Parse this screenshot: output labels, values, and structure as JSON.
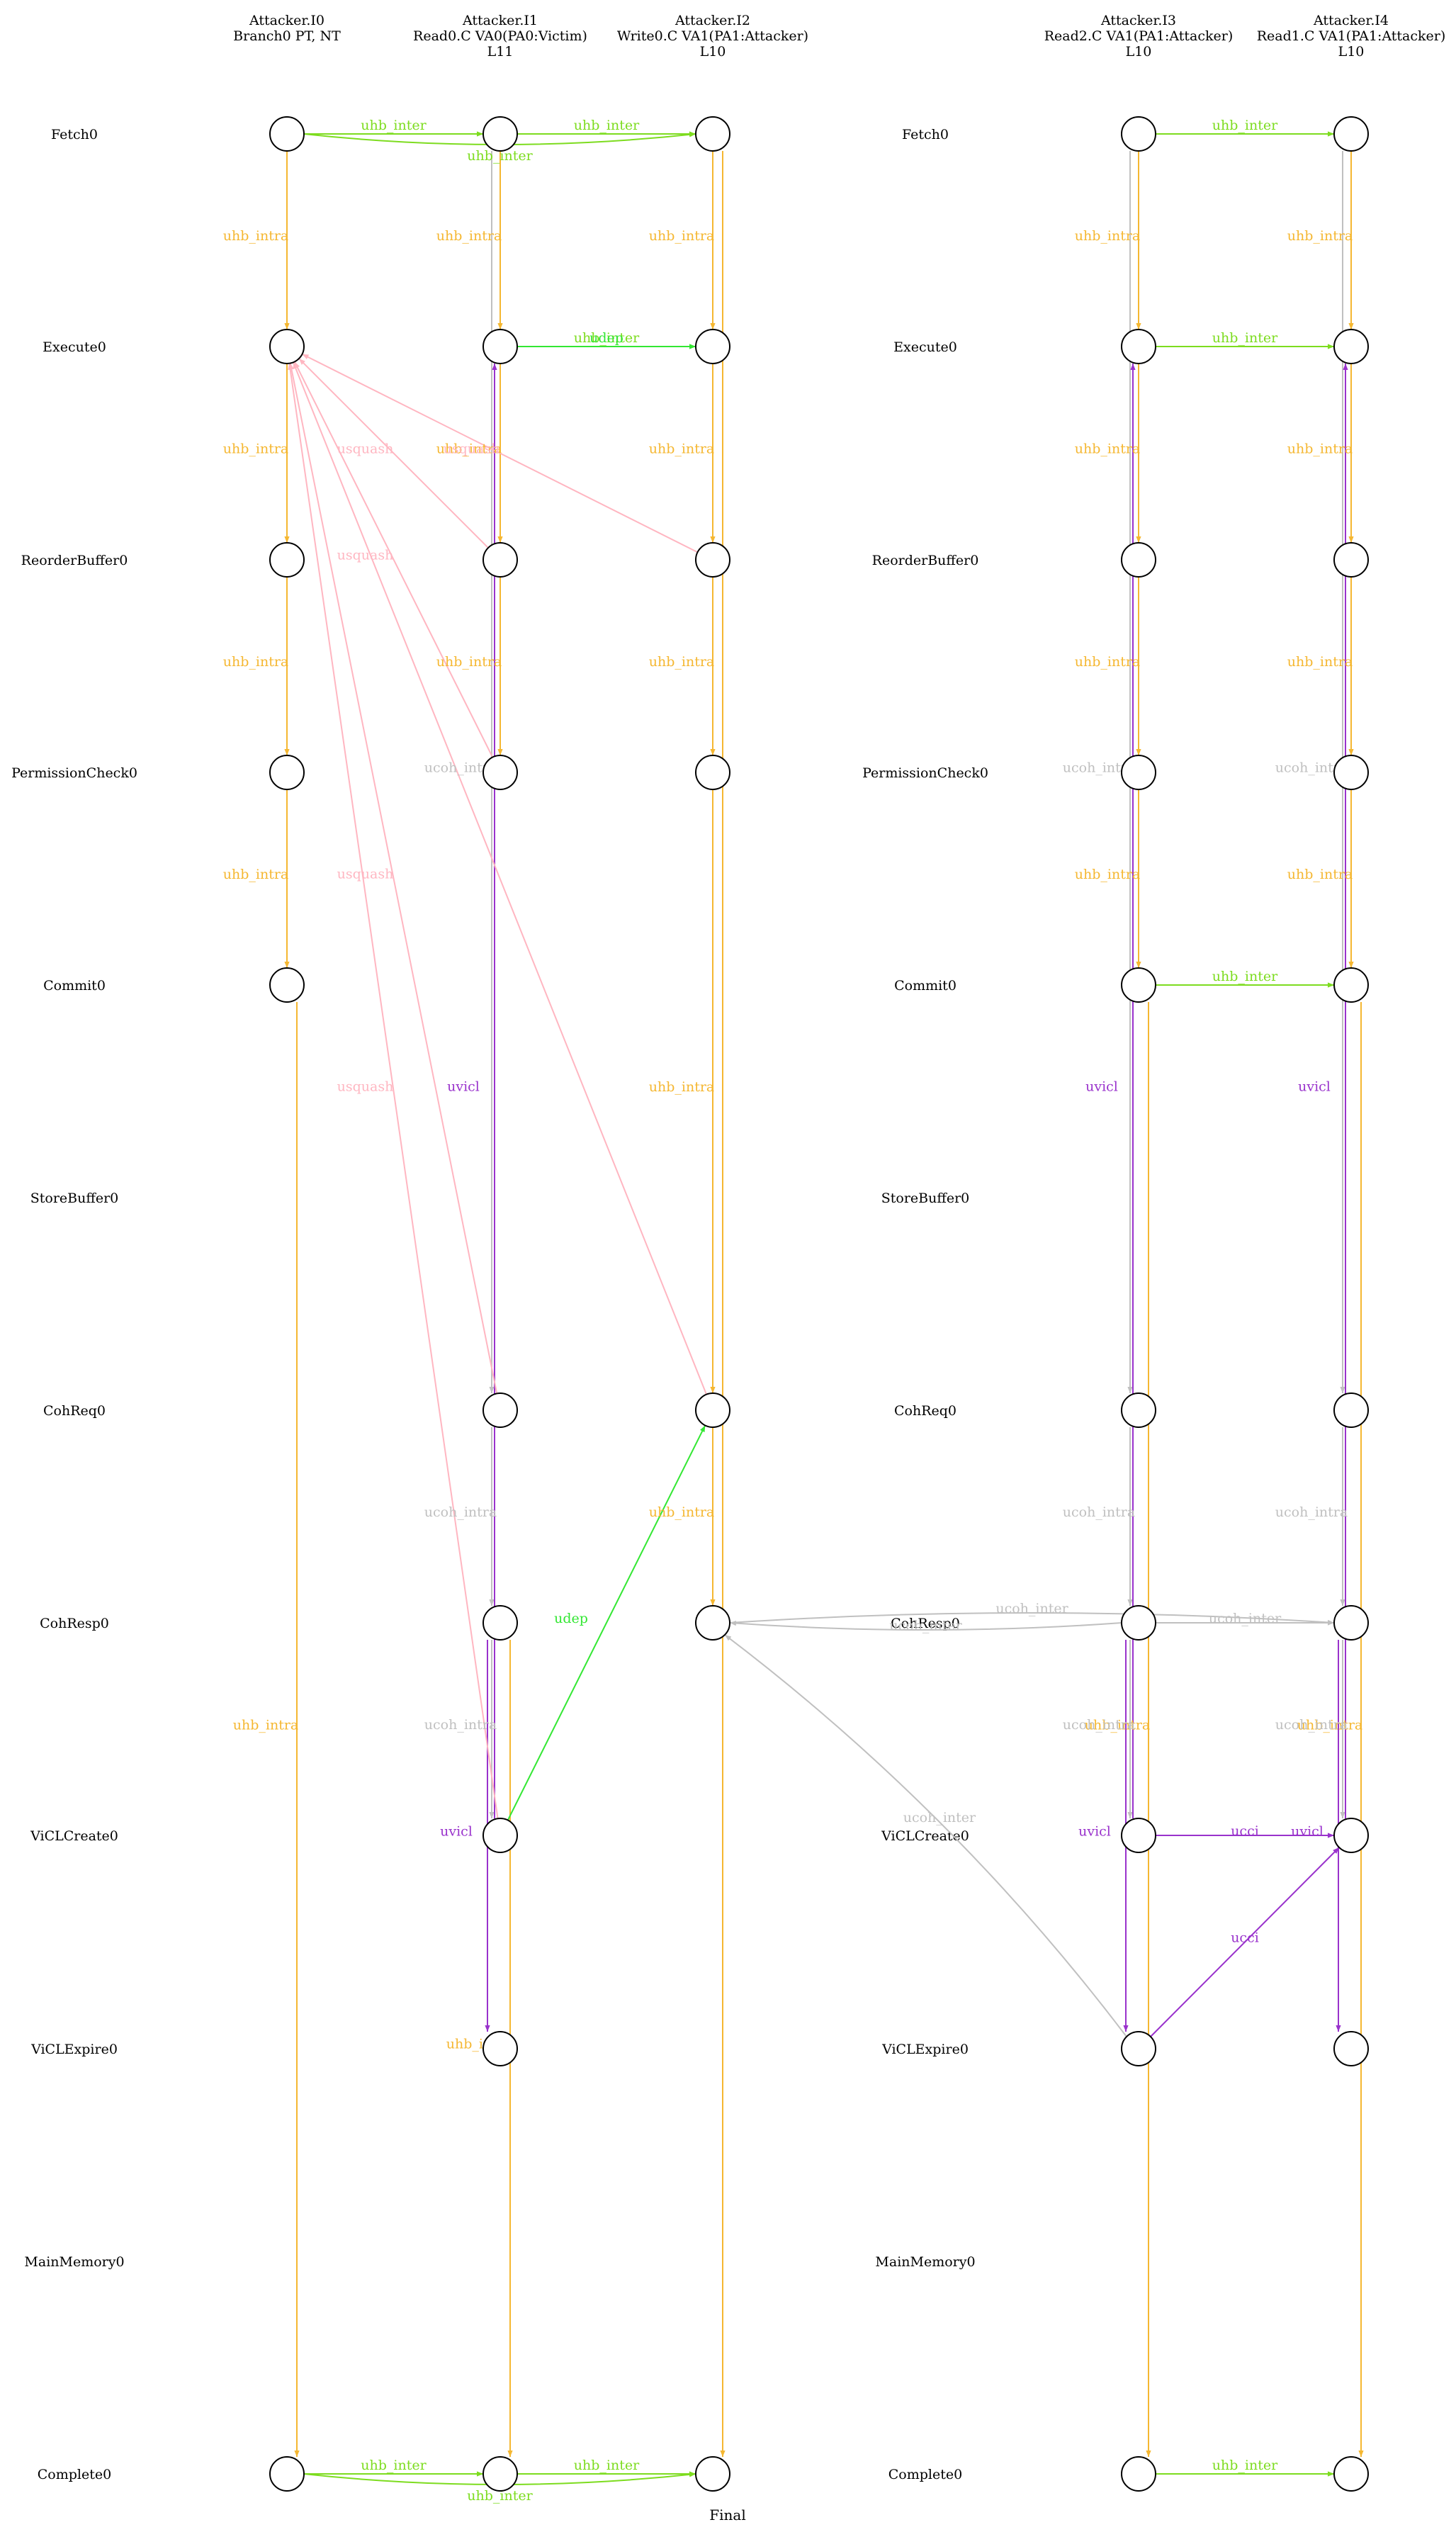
{
  "colors": {
    "uhb_intra": "#f5b731",
    "uhb_inter": "#7ddc1f",
    "udep": "#33e733",
    "ucoh": "#c0c0c0",
    "uvicl": "#9932cc",
    "usquash": "#ffb6c1",
    "node_stroke": "#000000",
    "text": "#000000"
  },
  "columns": [
    {
      "id": "c0",
      "lines": [
        "Attacker.I0",
        "Branch0 PT, NT"
      ]
    },
    {
      "id": "c1",
      "lines": [
        "Attacker.I1",
        "Read0.C VA0(PA0:Victim)",
        "L11"
      ]
    },
    {
      "id": "c2",
      "lines": [
        "Attacker.I2",
        "Write0.C VA1(PA1:Attacker)",
        "L10"
      ]
    },
    {
      "id": "c3",
      "lines": [
        "Attacker.I3",
        "Read2.C VA1(PA1:Attacker)",
        "L10"
      ]
    },
    {
      "id": "c4",
      "lines": [
        "Attacker.I4",
        "Read1.C VA1(PA1:Attacker)",
        "L10"
      ]
    }
  ],
  "rows": [
    "Fetch0",
    "Execute0",
    "ReorderBuffer0",
    "PermissionCheck0",
    "Commit0",
    "StoreBuffer0",
    "CohReq0",
    "CohResp0",
    "ViCLCreate0",
    "ViCLExpire0",
    "MainMemory0",
    "Complete0"
  ],
  "nodes": [
    {
      "c": 0,
      "r": 0
    },
    {
      "c": 0,
      "r": 1
    },
    {
      "c": 0,
      "r": 2
    },
    {
      "c": 0,
      "r": 3
    },
    {
      "c": 0,
      "r": 4
    },
    {
      "c": 0,
      "r": 11
    },
    {
      "c": 1,
      "r": 0
    },
    {
      "c": 1,
      "r": 1
    },
    {
      "c": 1,
      "r": 2
    },
    {
      "c": 1,
      "r": 3
    },
    {
      "c": 1,
      "r": 6
    },
    {
      "c": 1,
      "r": 7
    },
    {
      "c": 1,
      "r": 8
    },
    {
      "c": 1,
      "r": 9
    },
    {
      "c": 1,
      "r": 11
    },
    {
      "c": 2,
      "r": 0
    },
    {
      "c": 2,
      "r": 1
    },
    {
      "c": 2,
      "r": 2
    },
    {
      "c": 2,
      "r": 3
    },
    {
      "c": 2,
      "r": 6
    },
    {
      "c": 2,
      "r": 7
    },
    {
      "c": 2,
      "r": 11
    },
    {
      "c": 3,
      "r": 0
    },
    {
      "c": 3,
      "r": 1
    },
    {
      "c": 3,
      "r": 2
    },
    {
      "c": 3,
      "r": 3
    },
    {
      "c": 3,
      "r": 4
    },
    {
      "c": 3,
      "r": 6
    },
    {
      "c": 3,
      "r": 7
    },
    {
      "c": 3,
      "r": 8
    },
    {
      "c": 3,
      "r": 9
    },
    {
      "c": 3,
      "r": 11
    },
    {
      "c": 4,
      "r": 0
    },
    {
      "c": 4,
      "r": 1
    },
    {
      "c": 4,
      "r": 2
    },
    {
      "c": 4,
      "r": 3
    },
    {
      "c": 4,
      "r": 4
    },
    {
      "c": 4,
      "r": 6
    },
    {
      "c": 4,
      "r": 7
    },
    {
      "c": 4,
      "r": 8
    },
    {
      "c": 4,
      "r": 9
    },
    {
      "c": 4,
      "r": 11
    }
  ],
  "edges": [
    {
      "from": [
        0,
        0
      ],
      "to": [
        0,
        1
      ],
      "kind": "uhb_intra",
      "label": "uhb_intra"
    },
    {
      "from": [
        0,
        1
      ],
      "to": [
        0,
        2
      ],
      "kind": "uhb_intra",
      "label": "uhb_intra"
    },
    {
      "from": [
        0,
        2
      ],
      "to": [
        0,
        3
      ],
      "kind": "uhb_intra",
      "label": "uhb_intra"
    },
    {
      "from": [
        0,
        3
      ],
      "to": [
        0,
        4
      ],
      "kind": "uhb_intra",
      "label": "uhb_intra"
    },
    {
      "from": [
        0,
        4
      ],
      "to": [
        0,
        11
      ],
      "kind": "uhb_intra",
      "label": "uhb_intra"
    },
    {
      "from": [
        1,
        0
      ],
      "to": [
        1,
        1
      ],
      "kind": "uhb_intra",
      "label": "uhb_intra"
    },
    {
      "from": [
        1,
        1
      ],
      "to": [
        1,
        2
      ],
      "kind": "uhb_intra",
      "label": "uhb_intra"
    },
    {
      "from": [
        1,
        2
      ],
      "to": [
        1,
        3
      ],
      "kind": "uhb_intra",
      "label": "uhb_intra"
    },
    {
      "from": [
        1,
        7
      ],
      "to": [
        1,
        11
      ],
      "kind": "uhb_intra",
      "label": "uhb_intra"
    },
    {
      "from": [
        2,
        0
      ],
      "to": [
        2,
        1
      ],
      "kind": "uhb_intra",
      "label": "uhb_intra"
    },
    {
      "from": [
        2,
        1
      ],
      "to": [
        2,
        2
      ],
      "kind": "uhb_intra",
      "label": "uhb_intra"
    },
    {
      "from": [
        2,
        2
      ],
      "to": [
        2,
        3
      ],
      "kind": "uhb_intra",
      "label": "uhb_intra"
    },
    {
      "from": [
        2,
        3
      ],
      "to": [
        2,
        6
      ],
      "kind": "uhb_intra",
      "label": "uhb_intra"
    },
    {
      "from": [
        2,
        6
      ],
      "to": [
        2,
        7
      ],
      "kind": "uhb_intra",
      "label": "uhb_intra"
    },
    {
      "from": [
        2,
        0
      ],
      "to": [
        2,
        11
      ],
      "kind": "uhb_intra",
      "label": ""
    },
    {
      "from": [
        3,
        0
      ],
      "to": [
        3,
        1
      ],
      "kind": "uhb_intra",
      "label": "uhb_intra"
    },
    {
      "from": [
        3,
        1
      ],
      "to": [
        3,
        2
      ],
      "kind": "uhb_intra",
      "label": "uhb_intra"
    },
    {
      "from": [
        3,
        2
      ],
      "to": [
        3,
        3
      ],
      "kind": "uhb_intra",
      "label": "uhb_intra"
    },
    {
      "from": [
        3,
        3
      ],
      "to": [
        3,
        4
      ],
      "kind": "uhb_intra",
      "label": "uhb_intra"
    },
    {
      "from": [
        3,
        4
      ],
      "to": [
        3,
        11
      ],
      "kind": "uhb_intra",
      "label": "uhb_intra"
    },
    {
      "from": [
        4,
        0
      ],
      "to": [
        4,
        1
      ],
      "kind": "uhb_intra",
      "label": "uhb_intra"
    },
    {
      "from": [
        4,
        1
      ],
      "to": [
        4,
        2
      ],
      "kind": "uhb_intra",
      "label": "uhb_intra"
    },
    {
      "from": [
        4,
        2
      ],
      "to": [
        4,
        3
      ],
      "kind": "uhb_intra",
      "label": "uhb_intra"
    },
    {
      "from": [
        4,
        3
      ],
      "to": [
        4,
        4
      ],
      "kind": "uhb_intra",
      "label": "uhb_intra"
    },
    {
      "from": [
        4,
        4
      ],
      "to": [
        4,
        11
      ],
      "kind": "uhb_intra",
      "label": "uhb_intra"
    },
    {
      "from": [
        0,
        0
      ],
      "to": [
        1,
        0
      ],
      "kind": "uhb_inter",
      "label": "uhb_inter"
    },
    {
      "from": [
        1,
        0
      ],
      "to": [
        2,
        0
      ],
      "kind": "uhb_inter",
      "label": "uhb_inter"
    },
    {
      "from": [
        0,
        0
      ],
      "to": [
        2,
        0
      ],
      "kind": "uhb_inter",
      "label": "uhb_inter",
      "bend": 30
    },
    {
      "from": [
        1,
        1
      ],
      "to": [
        2,
        1
      ],
      "kind": "uhb_inter",
      "label": "uhb_inter"
    },
    {
      "from": [
        1,
        1
      ],
      "to": [
        2,
        1
      ],
      "kind": "udep",
      "label": "udep"
    },
    {
      "from": [
        0,
        11
      ],
      "to": [
        1,
        11
      ],
      "kind": "uhb_inter",
      "label": "uhb_inter"
    },
    {
      "from": [
        1,
        11
      ],
      "to": [
        2,
        11
      ],
      "kind": "uhb_inter",
      "label": "uhb_inter"
    },
    {
      "from": [
        0,
        11
      ],
      "to": [
        2,
        11
      ],
      "kind": "uhb_inter",
      "label": "uhb_inter",
      "bend": 30
    },
    {
      "from": [
        3,
        0
      ],
      "to": [
        4,
        0
      ],
      "kind": "uhb_inter",
      "label": "uhb_inter"
    },
    {
      "from": [
        3,
        1
      ],
      "to": [
        4,
        1
      ],
      "kind": "uhb_inter",
      "label": "uhb_inter"
    },
    {
      "from": [
        3,
        4
      ],
      "to": [
        4,
        4
      ],
      "kind": "uhb_inter",
      "label": "uhb_inter"
    },
    {
      "from": [
        3,
        11
      ],
      "to": [
        4,
        11
      ],
      "kind": "uhb_inter",
      "label": "uhb_inter"
    },
    {
      "from": [
        1,
        8
      ],
      "to": [
        2,
        6
      ],
      "kind": "udep",
      "label": "udep"
    },
    {
      "from": [
        1,
        0
      ],
      "to": [
        1,
        6
      ],
      "kind": "ucoh",
      "label": "ucoh_intra"
    },
    {
      "from": [
        1,
        6
      ],
      "to": [
        1,
        7
      ],
      "kind": "ucoh",
      "label": "ucoh_intra"
    },
    {
      "from": [
        1,
        7
      ],
      "to": [
        1,
        8
      ],
      "kind": "ucoh",
      "label": "ucoh_intra"
    },
    {
      "from": [
        3,
        0
      ],
      "to": [
        3,
        6
      ],
      "kind": "ucoh",
      "label": "ucoh_intra"
    },
    {
      "from": [
        3,
        6
      ],
      "to": [
        3,
        7
      ],
      "kind": "ucoh",
      "label": "ucoh_intra"
    },
    {
      "from": [
        3,
        7
      ],
      "to": [
        3,
        8
      ],
      "kind": "ucoh",
      "label": "ucoh_intra"
    },
    {
      "from": [
        4,
        0
      ],
      "to": [
        4,
        6
      ],
      "kind": "ucoh",
      "label": "ucoh_intra"
    },
    {
      "from": [
        4,
        6
      ],
      "to": [
        4,
        7
      ],
      "kind": "ucoh",
      "label": "ucoh_intra"
    },
    {
      "from": [
        4,
        7
      ],
      "to": [
        4,
        8
      ],
      "kind": "ucoh",
      "label": "ucoh_intra"
    },
    {
      "from": [
        2,
        7
      ],
      "to": [
        4,
        7
      ],
      "kind": "ucoh",
      "label": "ucoh_inter",
      "bend": -28
    },
    {
      "from": [
        3,
        7
      ],
      "to": [
        2,
        7
      ],
      "kind": "ucoh",
      "label": "ucoh_inter",
      "bend": -20
    },
    {
      "from": [
        3,
        7
      ],
      "to": [
        4,
        7
      ],
      "kind": "ucoh",
      "label": "ucoh_inter"
    },
    {
      "from": [
        3,
        9
      ],
      "to": [
        2,
        7
      ],
      "kind": "ucoh",
      "label": "ucoh_inter",
      "bend": 55
    },
    {
      "from": [
        1,
        8
      ],
      "to": [
        1,
        1
      ],
      "kind": "uvicl",
      "label": "uvicl"
    },
    {
      "from": [
        1,
        7
      ],
      "to": [
        1,
        9
      ],
      "kind": "uvicl",
      "label": "uvicl"
    },
    {
      "from": [
        3,
        8
      ],
      "to": [
        3,
        1
      ],
      "kind": "uvicl",
      "label": "uvicl"
    },
    {
      "from": [
        3,
        7
      ],
      "to": [
        3,
        9
      ],
      "kind": "uvicl",
      "label": "uvicl"
    },
    {
      "from": [
        4,
        8
      ],
      "to": [
        4,
        1
      ],
      "kind": "uvicl",
      "label": "uvicl"
    },
    {
      "from": [
        4,
        7
      ],
      "to": [
        4,
        9
      ],
      "kind": "uvicl",
      "label": "uvicl"
    },
    {
      "from": [
        3,
        8
      ],
      "to": [
        4,
        8
      ],
      "kind": "uvicl",
      "label": "ucci"
    },
    {
      "from": [
        3,
        9
      ],
      "to": [
        4,
        8
      ],
      "kind": "uvicl",
      "label": "ucci"
    },
    {
      "from": [
        1,
        2
      ],
      "to": [
        0,
        1
      ],
      "kind": "usquash",
      "label": "usquash"
    },
    {
      "from": [
        2,
        2
      ],
      "to": [
        0,
        1
      ],
      "kind": "usquash",
      "label": "usquash"
    },
    {
      "from": [
        1,
        3
      ],
      "to": [
        0,
        1
      ],
      "kind": "usquash",
      "label": "usquash"
    },
    {
      "from": [
        1,
        8
      ],
      "to": [
        0,
        1
      ],
      "kind": "usquash",
      "label": "usquash"
    },
    {
      "from": [
        1,
        6
      ],
      "to": [
        0,
        1
      ],
      "kind": "usquash",
      "label": "usquash"
    },
    {
      "from": [
        2,
        6
      ],
      "to": [
        0,
        1
      ],
      "kind": "usquash",
      "label": ""
    }
  ],
  "footer": "Final"
}
